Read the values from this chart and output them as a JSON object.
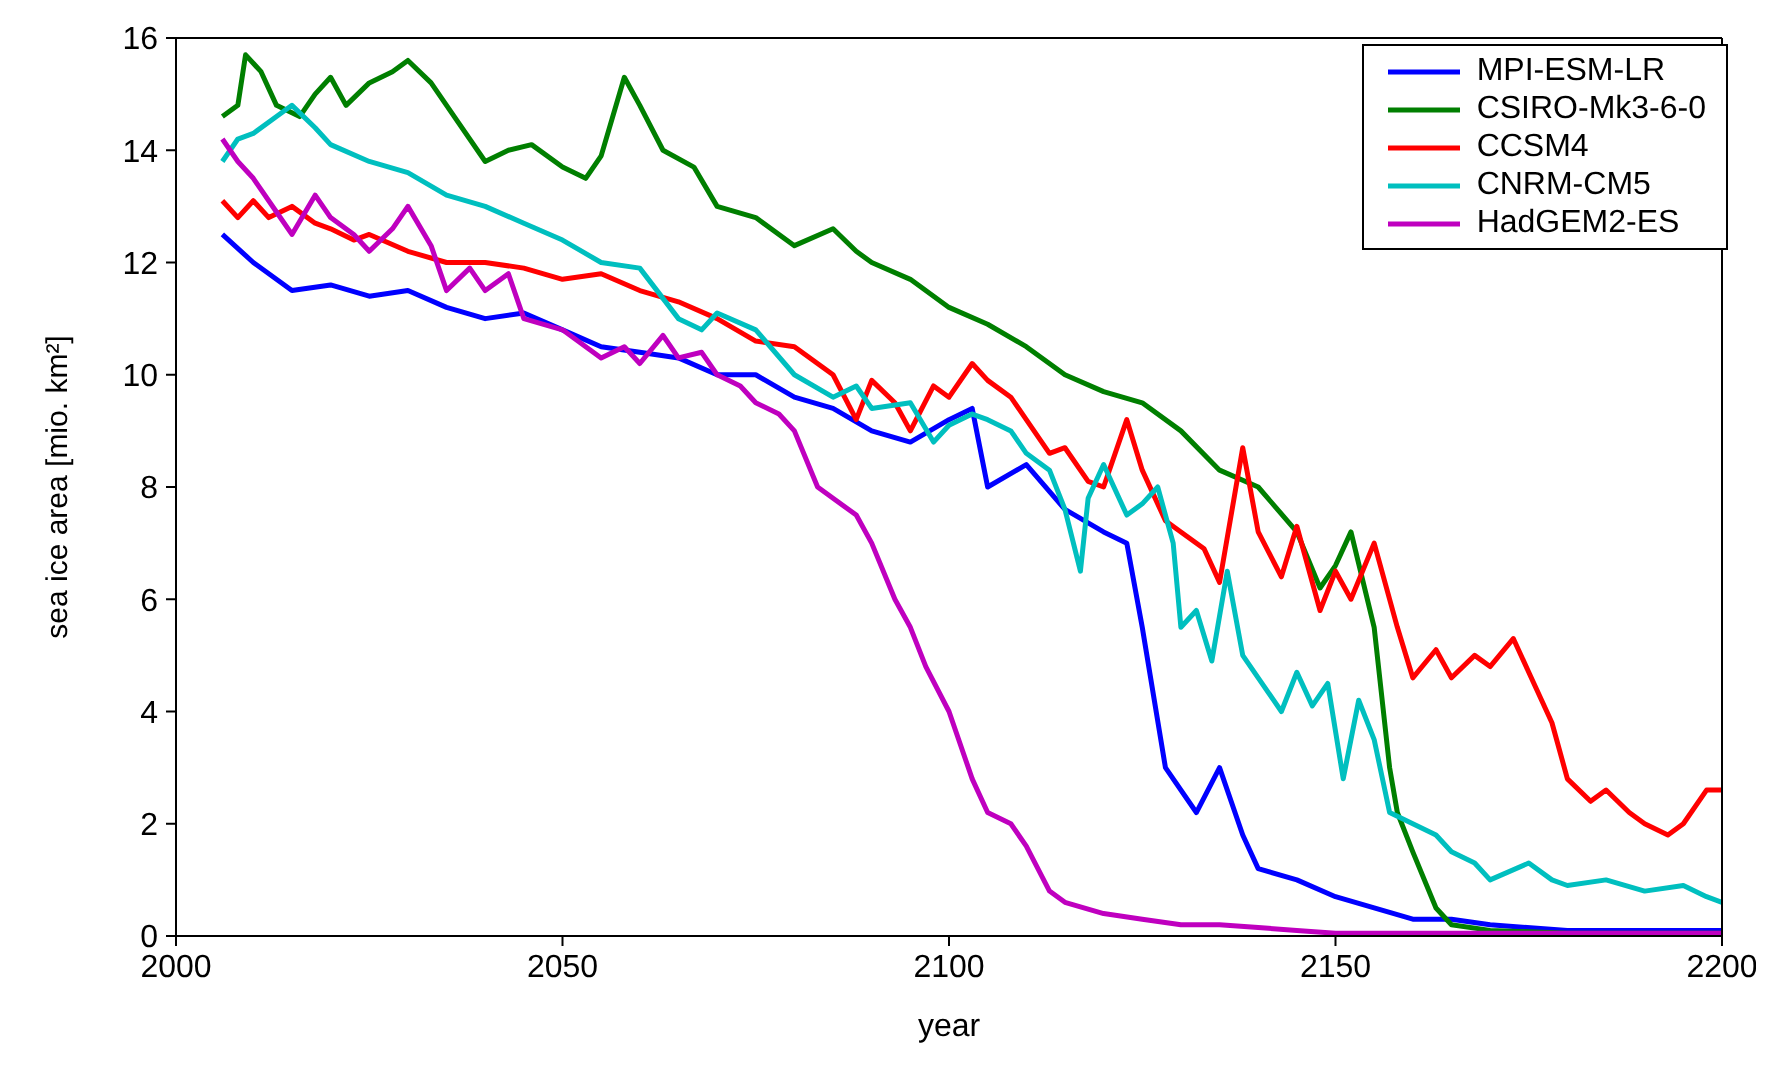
{
  "chart_data": {
    "type": "line",
    "xlabel": "year",
    "ylabel": "sea ice area [mio. km²]",
    "xlim": [
      2000,
      2200
    ],
    "xticks": [
      2000,
      2050,
      2100,
      2150,
      2200
    ],
    "ylim": [
      0,
      16
    ],
    "yticks": [
      0,
      2,
      4,
      6,
      8,
      10,
      12,
      14,
      16
    ],
    "grid": false,
    "legend": "top right",
    "marker": "none",
    "line_style": "solid",
    "series": [
      {
        "name": "MPI-ESM-LR",
        "color": "#0000ff",
        "x": [
          2006,
          2010,
          2015,
          2020,
          2025,
          2030,
          2035,
          2040,
          2045,
          2050,
          2055,
          2060,
          2065,
          2070,
          2075,
          2080,
          2085,
          2090,
          2095,
          2100,
          2103,
          2105,
          2110,
          2115,
          2120,
          2123,
          2125,
          2128,
          2132,
          2135,
          2138,
          2140,
          2145,
          2150,
          2155,
          2160,
          2165,
          2170,
          2180,
          2190,
          2200
        ],
        "values": [
          12.5,
          12.0,
          11.5,
          11.6,
          11.4,
          11.5,
          11.2,
          11.0,
          11.1,
          10.8,
          10.5,
          10.4,
          10.3,
          10.0,
          10.0,
          9.6,
          9.4,
          9.0,
          8.8,
          9.2,
          9.4,
          8.0,
          8.4,
          7.6,
          7.2,
          7.0,
          5.5,
          3.0,
          2.2,
          3.0,
          1.8,
          1.2,
          1.0,
          0.7,
          0.5,
          0.3,
          0.3,
          0.2,
          0.1,
          0.1,
          0.1
        ]
      },
      {
        "name": "CSIRO-Mk3-6-0",
        "color": "#007f00",
        "x": [
          2006,
          2008,
          2009,
          2011,
          2013,
          2016,
          2018,
          2020,
          2022,
          2025,
          2028,
          2030,
          2033,
          2036,
          2040,
          2043,
          2046,
          2050,
          2053,
          2055,
          2058,
          2060,
          2063,
          2067,
          2070,
          2075,
          2080,
          2085,
          2088,
          2090,
          2095,
          2100,
          2105,
          2110,
          2115,
          2120,
          2125,
          2130,
          2135,
          2140,
          2145,
          2148,
          2150,
          2152,
          2155,
          2157,
          2158,
          2160,
          2163,
          2165,
          2170,
          2180,
          2200
        ],
        "values": [
          14.6,
          14.8,
          15.7,
          15.4,
          14.8,
          14.6,
          15.0,
          15.3,
          14.8,
          15.2,
          15.4,
          15.6,
          15.2,
          14.6,
          13.8,
          14.0,
          14.1,
          13.7,
          13.5,
          13.9,
          15.3,
          14.8,
          14.0,
          13.7,
          13.0,
          12.8,
          12.3,
          12.6,
          12.2,
          12.0,
          11.7,
          11.2,
          10.9,
          10.5,
          10.0,
          9.7,
          9.5,
          9.0,
          8.3,
          8.0,
          7.2,
          6.2,
          6.6,
          7.2,
          5.5,
          3.0,
          2.2,
          1.5,
          0.5,
          0.2,
          0.1,
          0.05,
          0.05
        ]
      },
      {
        "name": "CCSM4",
        "color": "#ff0000",
        "x": [
          2006,
          2008,
          2010,
          2012,
          2015,
          2018,
          2020,
          2023,
          2025,
          2030,
          2035,
          2040,
          2045,
          2050,
          2055,
          2060,
          2065,
          2070,
          2075,
          2080,
          2085,
          2088,
          2090,
          2093,
          2095,
          2098,
          2100,
          2103,
          2105,
          2108,
          2110,
          2113,
          2115,
          2118,
          2120,
          2123,
          2125,
          2128,
          2130,
          2133,
          2135,
          2138,
          2140,
          2143,
          2145,
          2148,
          2150,
          2152,
          2155,
          2158,
          2160,
          2163,
          2165,
          2168,
          2170,
          2173,
          2175,
          2178,
          2180,
          2183,
          2185,
          2188,
          2190,
          2193,
          2195,
          2198,
          2200
        ],
        "values": [
          13.1,
          12.8,
          13.1,
          12.8,
          13.0,
          12.7,
          12.6,
          12.4,
          12.5,
          12.2,
          12.0,
          12.0,
          11.9,
          11.7,
          11.8,
          11.5,
          11.3,
          11.0,
          10.6,
          10.5,
          10.0,
          9.2,
          9.9,
          9.5,
          9.0,
          9.8,
          9.6,
          10.2,
          9.9,
          9.6,
          9.2,
          8.6,
          8.7,
          8.1,
          8.0,
          9.2,
          8.3,
          7.4,
          7.2,
          6.9,
          6.3,
          8.7,
          7.2,
          6.4,
          7.3,
          5.8,
          6.5,
          6.0,
          7.0,
          5.5,
          4.6,
          5.1,
          4.6,
          5.0,
          4.8,
          5.3,
          4.7,
          3.8,
          2.8,
          2.4,
          2.6,
          2.2,
          2.0,
          1.8,
          2.0,
          2.6,
          2.6
        ]
      },
      {
        "name": "CNRM-CM5",
        "color": "#00bfbf",
        "x": [
          2006,
          2008,
          2010,
          2013,
          2015,
          2018,
          2020,
          2025,
          2030,
          2035,
          2040,
          2045,
          2050,
          2055,
          2060,
          2065,
          2068,
          2070,
          2075,
          2080,
          2085,
          2088,
          2090,
          2095,
          2098,
          2100,
          2103,
          2105,
          2108,
          2110,
          2113,
          2115,
          2117,
          2118,
          2120,
          2123,
          2125,
          2127,
          2129,
          2130,
          2132,
          2134,
          2136,
          2138,
          2140,
          2143,
          2145,
          2147,
          2149,
          2151,
          2153,
          2155,
          2157,
          2160,
          2163,
          2165,
          2168,
          2170,
          2175,
          2178,
          2180,
          2185,
          2190,
          2195,
          2198,
          2200
        ],
        "values": [
          13.8,
          14.2,
          14.3,
          14.6,
          14.8,
          14.4,
          14.1,
          13.8,
          13.6,
          13.2,
          13.0,
          12.7,
          12.4,
          12.0,
          11.9,
          11.0,
          10.8,
          11.1,
          10.8,
          10.0,
          9.6,
          9.8,
          9.4,
          9.5,
          8.8,
          9.1,
          9.3,
          9.2,
          9.0,
          8.6,
          8.3,
          7.6,
          6.5,
          7.8,
          8.4,
          7.5,
          7.7,
          8.0,
          7.0,
          5.5,
          5.8,
          4.9,
          6.5,
          5.0,
          4.6,
          4.0,
          4.7,
          4.1,
          4.5,
          2.8,
          4.2,
          3.5,
          2.2,
          2.0,
          1.8,
          1.5,
          1.3,
          1.0,
          1.3,
          1.0,
          0.9,
          1.0,
          0.8,
          0.9,
          0.7,
          0.6
        ]
      },
      {
        "name": "HadGEM2-ES",
        "color": "#bf00bf",
        "x": [
          2006,
          2008,
          2010,
          2013,
          2015,
          2018,
          2020,
          2023,
          2025,
          2028,
          2030,
          2033,
          2035,
          2038,
          2040,
          2043,
          2045,
          2050,
          2055,
          2058,
          2060,
          2063,
          2065,
          2068,
          2070,
          2073,
          2075,
          2078,
          2080,
          2083,
          2085,
          2088,
          2090,
          2093,
          2095,
          2097,
          2100,
          2103,
          2105,
          2108,
          2110,
          2113,
          2115,
          2120,
          2125,
          2130,
          2135,
          2140,
          2145,
          2150,
          2160,
          2170,
          2200
        ],
        "values": [
          14.2,
          13.8,
          13.5,
          12.9,
          12.5,
          13.2,
          12.8,
          12.5,
          12.2,
          12.6,
          13.0,
          12.3,
          11.5,
          11.9,
          11.5,
          11.8,
          11.0,
          10.8,
          10.3,
          10.5,
          10.2,
          10.7,
          10.3,
          10.4,
          10.0,
          9.8,
          9.5,
          9.3,
          9.0,
          8.0,
          7.8,
          7.5,
          7.0,
          6.0,
          5.5,
          4.8,
          4.0,
          2.8,
          2.2,
          2.0,
          1.6,
          0.8,
          0.6,
          0.4,
          0.3,
          0.2,
          0.2,
          0.15,
          0.1,
          0.05,
          0.05,
          0.05,
          0.05
        ]
      }
    ]
  }
}
